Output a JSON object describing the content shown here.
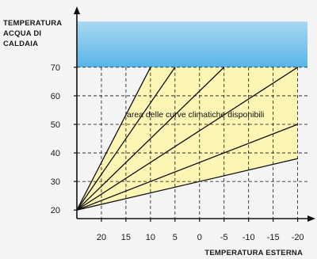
{
  "chart_data": {
    "type": "line",
    "ylabel_lines": [
      "TEMPERATURA",
      "ACQUA DI",
      "CALDAIA"
    ],
    "xlabel": "TEMPERATURA ESTERNA",
    "x_ticks": [
      20,
      15,
      10,
      5,
      0,
      -5,
      -10,
      -15,
      -20
    ],
    "x_tick_labels": [
      "20",
      "15",
      "10",
      "5",
      "0",
      "-5",
      "-10",
      "-15",
      "-20"
    ],
    "y_ticks": [
      20,
      30,
      40,
      50,
      60,
      70
    ],
    "y_tick_labels": [
      "20",
      "30",
      "40",
      "50",
      "60",
      "70"
    ],
    "xlim": [
      25,
      -22
    ],
    "ylim": [
      17,
      88
    ],
    "x_reversed": true,
    "grid": true,
    "grid_style": "dashed",
    "annotation": "area delle curve climatiche disponibili",
    "area_colors": {
      "curve_region": "#fcf5b4",
      "high_zone_top": "#a9d8f1",
      "high_zone_bottom": "#57b5e8"
    },
    "origin": {
      "x": 25,
      "y": 20
    },
    "series": [
      {
        "x": [
          25,
          10
        ],
        "y": [
          20,
          70
        ]
      },
      {
        "x": [
          25,
          5
        ],
        "y": [
          20,
          70
        ]
      },
      {
        "x": [
          25,
          -5
        ],
        "y": [
          20,
          70
        ]
      },
      {
        "x": [
          25,
          -20
        ],
        "y": [
          20,
          70
        ]
      },
      {
        "x": [
          25,
          -20
        ],
        "y": [
          20,
          50
        ]
      },
      {
        "x": [
          25,
          -20
        ],
        "y": [
          20,
          38
        ]
      }
    ],
    "shaded_region": {
      "x": [
        25,
        10,
        -20,
        -20
      ],
      "y": [
        20,
        70,
        70,
        38
      ]
    },
    "high_temp_zone": {
      "x_from": 25,
      "x_to": -22,
      "y_from": 70,
      "y_to": 86
    }
  }
}
